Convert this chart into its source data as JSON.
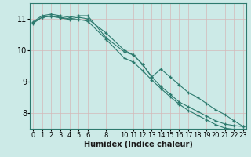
{
  "background_color": "#cceae7",
  "grid_color": "#b0d8d4",
  "line_color": "#2d7a6e",
  "xlabel": "Humidex (Indice chaleur)",
  "xlabel_fontsize": 7,
  "ylim": [
    7.5,
    11.5
  ],
  "xlim": [
    -0.3,
    23.3
  ],
  "yticks": [
    8,
    9,
    10,
    11
  ],
  "xticks": [
    0,
    1,
    2,
    3,
    4,
    5,
    6,
    8,
    10,
    11,
    12,
    13,
    14,
    15,
    16,
    17,
    18,
    19,
    20,
    21,
    22,
    23
  ],
  "line1_x": [
    0,
    1,
    2,
    3,
    4,
    5,
    6,
    8,
    10,
    11,
    12,
    13,
    14,
    15,
    16,
    17,
    18,
    19,
    20,
    21,
    22,
    23
  ],
  "line1_y": [
    10.85,
    11.05,
    11.1,
    11.05,
    11.0,
    11.05,
    11.0,
    10.55,
    10.0,
    9.85,
    9.55,
    9.15,
    8.85,
    8.6,
    8.35,
    8.2,
    8.05,
    7.9,
    7.75,
    7.65,
    7.6,
    7.57
  ],
  "line2_x": [
    0,
    1,
    2,
    3,
    4,
    5,
    6,
    8,
    10,
    11,
    12,
    13,
    14,
    15,
    16,
    17,
    18,
    19,
    20,
    21,
    22,
    23
  ],
  "line2_y": [
    10.9,
    11.1,
    11.15,
    11.1,
    11.05,
    11.1,
    11.1,
    10.4,
    9.95,
    9.85,
    9.55,
    9.15,
    9.4,
    9.15,
    8.9,
    8.65,
    8.5,
    8.3,
    8.1,
    7.95,
    7.75,
    7.57
  ],
  "line3_x": [
    0,
    1,
    2,
    3,
    4,
    5,
    6,
    8,
    10,
    11,
    12,
    13,
    14,
    15,
    16,
    17,
    18,
    19,
    20,
    21,
    22,
    23
  ],
  "line3_y": [
    10.88,
    11.05,
    11.08,
    11.03,
    10.98,
    10.98,
    10.93,
    10.35,
    9.75,
    9.62,
    9.35,
    9.05,
    8.78,
    8.52,
    8.28,
    8.08,
    7.93,
    7.78,
    7.63,
    7.52,
    7.48,
    7.45
  ]
}
